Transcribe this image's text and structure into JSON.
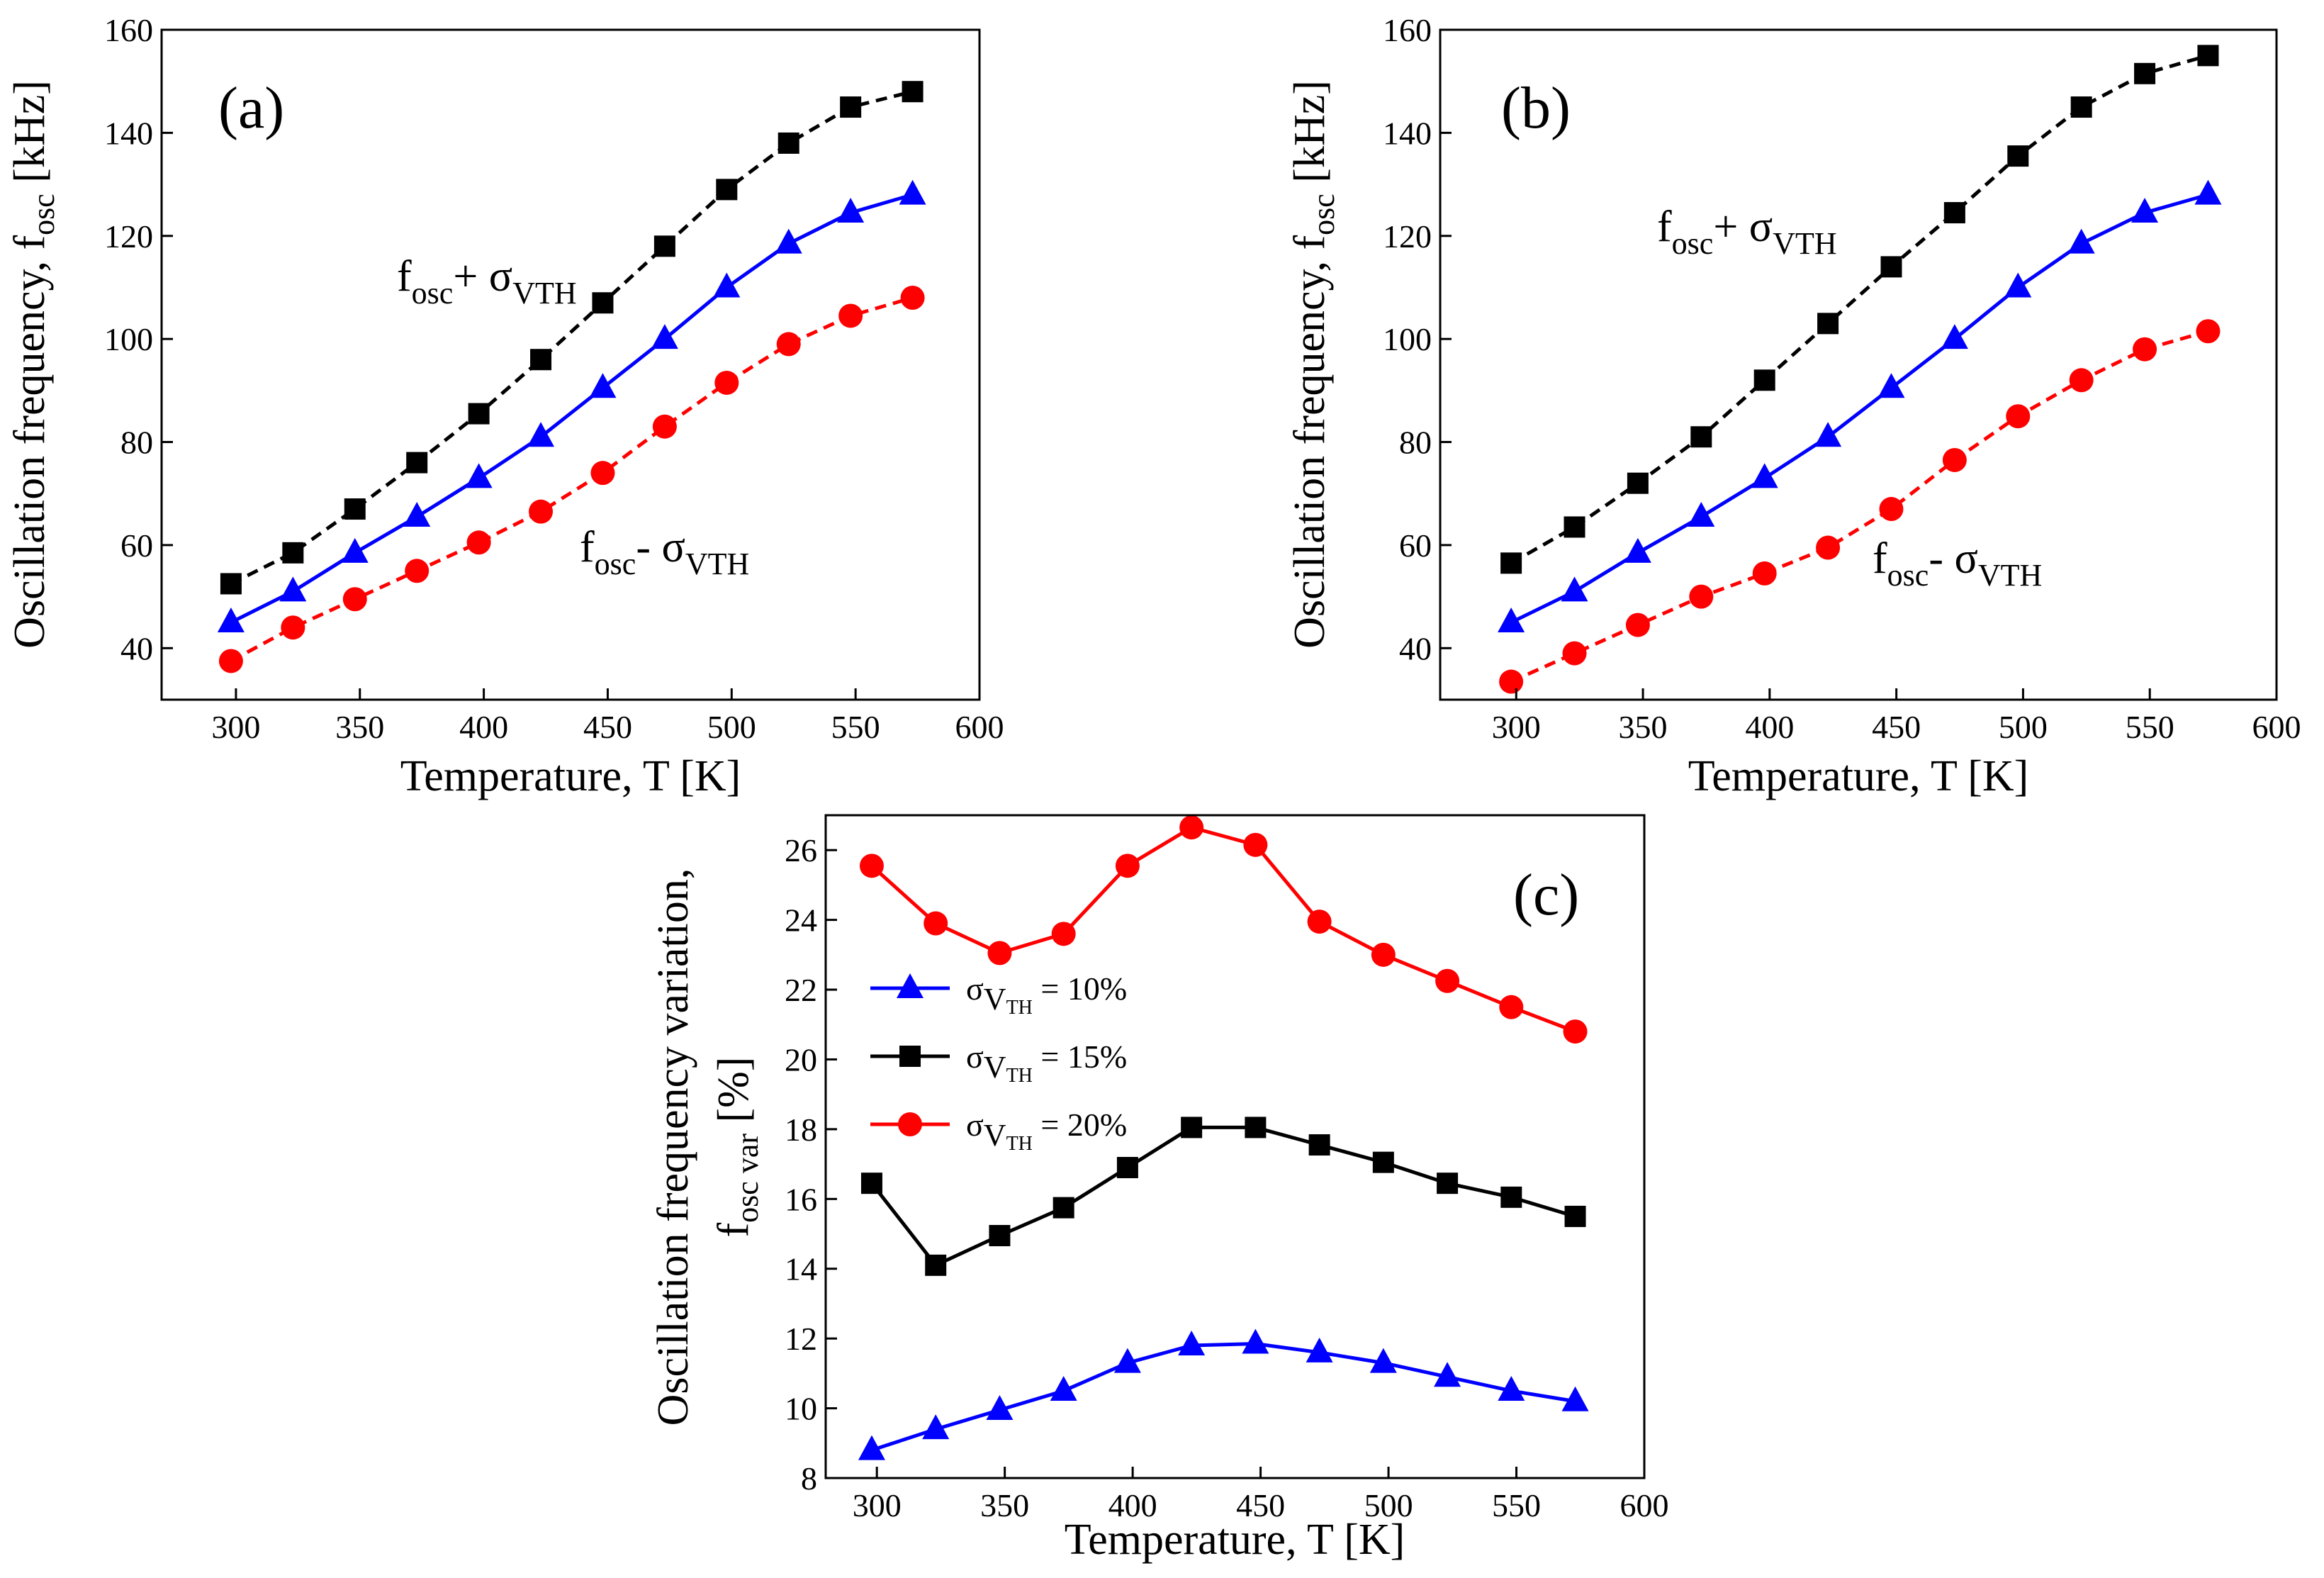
{
  "chart_data": [
    {
      "type": "line",
      "panel_label": "(a)",
      "xlabel": "Temperature, T [K]",
      "ylabel": {
        "main": "Oscillation frequency, f",
        "sub": "osc",
        "unit": " [kHz]"
      },
      "xlim": [
        270,
        600
      ],
      "ylim": [
        30,
        160
      ],
      "xticks": [
        300,
        350,
        400,
        450,
        500,
        550,
        600
      ],
      "yticks": [
        40,
        60,
        80,
        100,
        120,
        140,
        160
      ],
      "x": [
        298,
        323,
        348,
        373,
        398,
        423,
        448,
        473,
        498,
        523,
        548,
        573
      ],
      "series": [
        {
          "name": "f_osc + σ_VTH",
          "color": "#000000",
          "marker": "square",
          "dashed": true,
          "values": [
            52.5,
            58.5,
            67,
            76,
            85.5,
            96,
            107,
            118,
            129,
            138,
            145,
            148
          ]
        },
        {
          "name": "f_osc",
          "color": "#0000ff",
          "marker": "triangle",
          "dashed": false,
          "values": [
            45,
            51,
            58.5,
            65.5,
            73,
            81,
            90.5,
            100,
            110,
            118.5,
            124.5,
            128
          ]
        },
        {
          "name": "f_osc - σ_VTH",
          "color": "#ff0000",
          "marker": "circle",
          "dashed": true,
          "values": [
            37.5,
            44,
            49.5,
            55,
            60.5,
            66.5,
            74,
            83,
            91.5,
            99,
            104.5,
            108
          ]
        }
      ],
      "annotations": [
        {
          "main": "f",
          "sub1": "osc",
          "op": "+ σ",
          "sub2": "VTH"
        },
        {
          "main": "f",
          "sub1": "osc",
          "op": "- σ",
          "sub2": "VTH"
        }
      ]
    },
    {
      "type": "line",
      "panel_label": "(b)",
      "xlabel": "Temperature, T [K]",
      "ylabel": {
        "main": "Oscillation frequency, f",
        "sub": "osc",
        "unit": " [kHz]"
      },
      "xlim": [
        270,
        600
      ],
      "ylim": [
        30,
        160
      ],
      "xticks": [
        300,
        350,
        400,
        450,
        500,
        550,
        600
      ],
      "yticks": [
        40,
        60,
        80,
        100,
        120,
        140,
        160
      ],
      "x": [
        298,
        323,
        348,
        373,
        398,
        423,
        448,
        473,
        498,
        523,
        548,
        573
      ],
      "series": [
        {
          "name": "f_osc + σ_VTH",
          "color": "#000000",
          "marker": "square",
          "dashed": true,
          "values": [
            56.5,
            63.5,
            72,
            81,
            92,
            103,
            114,
            124.5,
            135.5,
            145,
            151.5,
            155
          ]
        },
        {
          "name": "f_osc",
          "color": "#0000ff",
          "marker": "triangle",
          "dashed": false,
          "values": [
            45,
            51,
            58.5,
            65.5,
            73,
            81,
            90.5,
            100,
            110,
            118.5,
            124.5,
            128
          ]
        },
        {
          "name": "f_osc - σ_VTH",
          "color": "#ff0000",
          "marker": "circle",
          "dashed": true,
          "values": [
            33.5,
            39,
            44.5,
            50,
            54.5,
            59.5,
            67,
            76.5,
            85,
            92,
            98,
            101.5
          ]
        }
      ],
      "annotations": [
        {
          "main": "f",
          "sub1": "osc",
          "op": "+ σ",
          "sub2": "VTH"
        },
        {
          "main": "f",
          "sub1": "osc",
          "op": "- σ",
          "sub2": "VTH"
        }
      ]
    },
    {
      "type": "line",
      "panel_label": "(c)",
      "xlabel": "Temperature, T [K]",
      "ylabel": {
        "line1": "Oscillation frequency variation,",
        "main": "f",
        "sub": "osc var",
        "unit": " [%]"
      },
      "xlim": [
        280,
        600
      ],
      "ylim": [
        8,
        27
      ],
      "xticks": [
        300,
        350,
        400,
        450,
        500,
        550,
        600
      ],
      "yticks": [
        8,
        10,
        12,
        14,
        16,
        18,
        20,
        22,
        24,
        26
      ],
      "x": [
        298,
        323,
        348,
        373,
        398,
        423,
        448,
        473,
        498,
        523,
        548,
        573
      ],
      "series": [
        {
          "name": "10%",
          "color": "#0000ff",
          "marker": "triangle",
          "values": [
            8.8,
            9.4,
            9.95,
            10.5,
            11.3,
            11.8,
            11.85,
            11.6,
            11.3,
            10.9,
            10.5,
            10.2
          ]
        },
        {
          "name": "15%",
          "color": "#000000",
          "marker": "square",
          "values": [
            16.45,
            14.1,
            14.95,
            15.75,
            16.9,
            18.05,
            18.05,
            17.55,
            17.05,
            16.45,
            16.05,
            15.5
          ]
        },
        {
          "name": "20%",
          "color": "#ff0000",
          "marker": "circle",
          "values": [
            25.55,
            23.9,
            23.05,
            23.6,
            25.55,
            26.65,
            26.15,
            23.95,
            23.0,
            22.25,
            21.5,
            20.8
          ]
        }
      ],
      "legend": {
        "placement": "left-middle",
        "prefix": "σ",
        "sub": "V",
        "subsub": "TH",
        "entries": [
          "= 10%",
          "= 15%",
          "= 20%"
        ]
      }
    }
  ]
}
